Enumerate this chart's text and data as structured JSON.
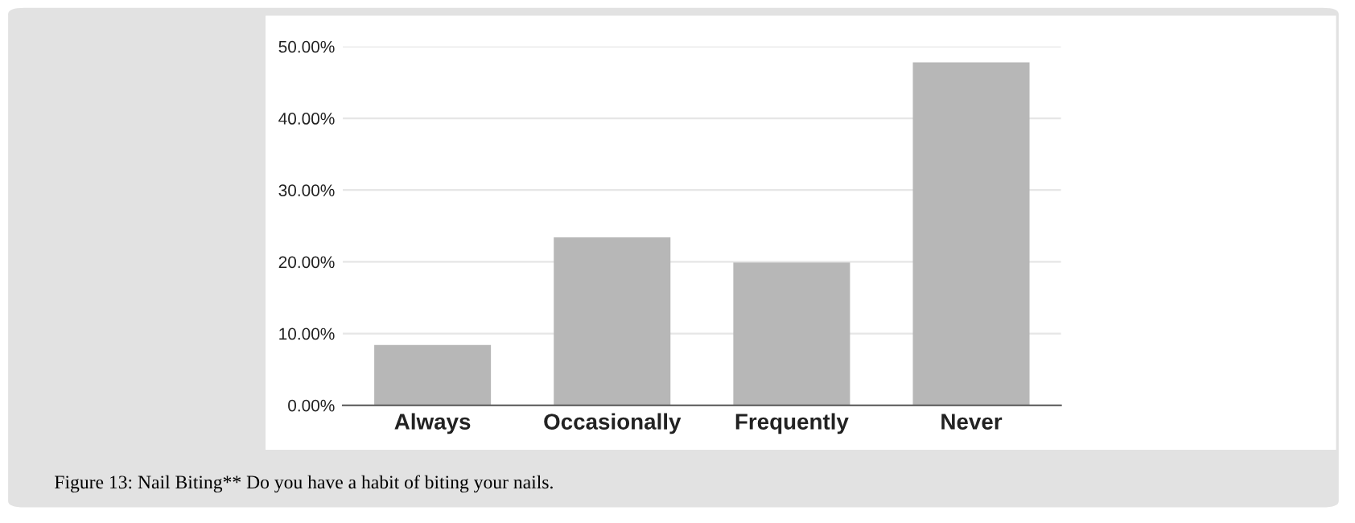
{
  "chart_data": {
    "type": "bar",
    "categories": [
      "Always",
      "Occasionally",
      "Frequently",
      "Never"
    ],
    "values": [
      8.4,
      23.4,
      19.9,
      47.8
    ],
    "color": "#b7b7b7",
    "ylim": [
      0,
      50
    ],
    "yticks": [
      {
        "value": 0,
        "label": "0.00%"
      },
      {
        "value": 10,
        "label": "10.00%"
      },
      {
        "value": 20,
        "label": "20.00%"
      },
      {
        "value": 30,
        "label": "30.00%"
      },
      {
        "value": 40,
        "label": "40.00%"
      },
      {
        "value": 50,
        "label": "50.00%"
      }
    ],
    "grid": "y",
    "annotations": [
      "Figure 13: Nail Biting** Do you have a habit of biting your nails."
    ]
  }
}
